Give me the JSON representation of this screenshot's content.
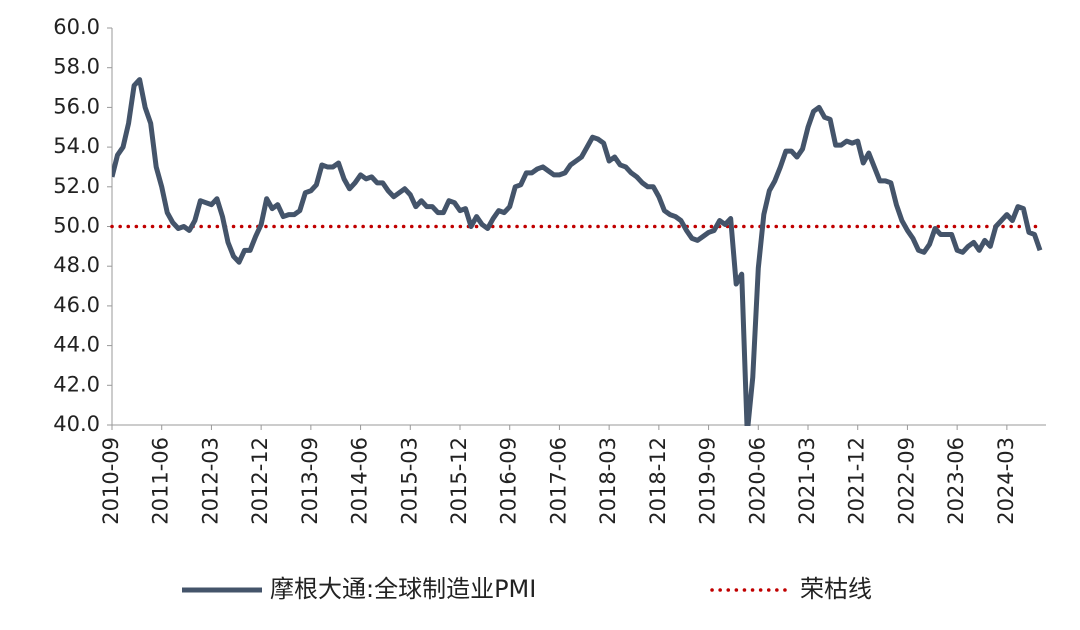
{
  "chart_data": {
    "type": "line",
    "categories": [
      "2010-09",
      null,
      null,
      null,
      null,
      null,
      null,
      null,
      null,
      "2011-06",
      null,
      null,
      null,
      null,
      null,
      null,
      null,
      null,
      "2012-03",
      null,
      null,
      null,
      null,
      null,
      null,
      null,
      null,
      "2012-12",
      null,
      null,
      null,
      null,
      null,
      null,
      null,
      null,
      "2013-09",
      null,
      null,
      null,
      null,
      null,
      null,
      null,
      null,
      "2014-06",
      null,
      null,
      null,
      null,
      null,
      null,
      null,
      null,
      "2015-03",
      null,
      null,
      null,
      null,
      null,
      null,
      null,
      null,
      "2015-12",
      null,
      null,
      null,
      null,
      null,
      null,
      null,
      null,
      "2016-09",
      null,
      null,
      null,
      null,
      null,
      null,
      null,
      null,
      "2017-06",
      null,
      null,
      null,
      null,
      null,
      null,
      null,
      null,
      "2018-03",
      null,
      null,
      null,
      null,
      null,
      null,
      null,
      null,
      "2018-12",
      null,
      null,
      null,
      null,
      null,
      null,
      null,
      null,
      "2019-09",
      null,
      null,
      null,
      null,
      null,
      null,
      null,
      null,
      "2020-06",
      null,
      null,
      null,
      null,
      null,
      null,
      null,
      null,
      "2021-03",
      null,
      null,
      null,
      null,
      null,
      null,
      null,
      null,
      "2021-12",
      null,
      null,
      null,
      null,
      null,
      null,
      null,
      null,
      "2022-09",
      null,
      null,
      null,
      null,
      null,
      null,
      null,
      null,
      "2023-06",
      null,
      null,
      null,
      null,
      null,
      null,
      null,
      null,
      "2024-03",
      null,
      null,
      null,
      null,
      null,
      null
    ],
    "series": [
      {
        "name": "摩根大通:全球制造业PMI",
        "color": "#44546a",
        "values": [
          52.5,
          53.6,
          54.0,
          55.2,
          57.1,
          57.4,
          56.0,
          55.2,
          53.0,
          52.0,
          50.7,
          50.2,
          49.9,
          50.0,
          49.8,
          50.3,
          51.3,
          51.2,
          51.1,
          51.4,
          50.5,
          49.2,
          48.5,
          48.2,
          48.8,
          48.8,
          49.5,
          50.1,
          51.4,
          50.9,
          51.1,
          50.5,
          50.6,
          50.6,
          50.8,
          51.7,
          51.8,
          52.1,
          53.1,
          53.0,
          53.0,
          53.2,
          52.4,
          51.9,
          52.2,
          52.6,
          52.4,
          52.5,
          52.2,
          52.2,
          51.8,
          51.5,
          51.7,
          51.9,
          51.6,
          51.0,
          51.3,
          51.0,
          51.0,
          50.7,
          50.7,
          51.3,
          51.2,
          50.8,
          50.9,
          50.0,
          50.5,
          50.1,
          49.9,
          50.4,
          50.8,
          50.7,
          51.0,
          52.0,
          52.1,
          52.7,
          52.7,
          52.9,
          53.0,
          52.8,
          52.6,
          52.6,
          52.7,
          53.1,
          53.3,
          53.5,
          54.0,
          54.5,
          54.4,
          54.2,
          53.3,
          53.5,
          53.1,
          53.0,
          52.7,
          52.5,
          52.2,
          52.0,
          52.0,
          51.5,
          50.8,
          50.6,
          50.5,
          50.3,
          49.8,
          49.4,
          49.3,
          49.5,
          49.7,
          49.8,
          50.3,
          50.1,
          50.4,
          47.1,
          47.6,
          39.6,
          42.4,
          47.9,
          50.6,
          51.8,
          52.3,
          53.0,
          53.8,
          53.8,
          53.5,
          53.9,
          55.0,
          55.8,
          56.0,
          55.5,
          55.4,
          54.1,
          54.1,
          54.3,
          54.2,
          54.3,
          53.2,
          53.7,
          53.0,
          52.3,
          52.3,
          52.2,
          51.1,
          50.3,
          49.8,
          49.4,
          48.8,
          48.7,
          49.1,
          49.9,
          49.6,
          49.6,
          49.6,
          48.8,
          48.7,
          49.0,
          49.2,
          48.8,
          49.3,
          49.0,
          50.0,
          50.3,
          50.6,
          50.3,
          51.0,
          50.9,
          49.7,
          49.6,
          48.8
        ]
      }
    ],
    "reference_line": {
      "name": "荣枯线",
      "value": 50,
      "color": "#c00000"
    },
    "ylim": [
      40,
      60
    ],
    "yticks": [
      {
        "value": 40,
        "label": "40.0"
      },
      {
        "value": 42,
        "label": "42.0"
      },
      {
        "value": 44,
        "label": "44.0"
      },
      {
        "value": 46,
        "label": "46.0"
      },
      {
        "value": 48,
        "label": "48.0"
      },
      {
        "value": 50,
        "label": "50.0"
      },
      {
        "value": 52,
        "label": "52.0"
      },
      {
        "value": 54,
        "label": "54.0"
      },
      {
        "value": 56,
        "label": "56.0"
      },
      {
        "value": 58,
        "label": "58.0"
      },
      {
        "value": 60,
        "label": "60.0"
      }
    ]
  }
}
